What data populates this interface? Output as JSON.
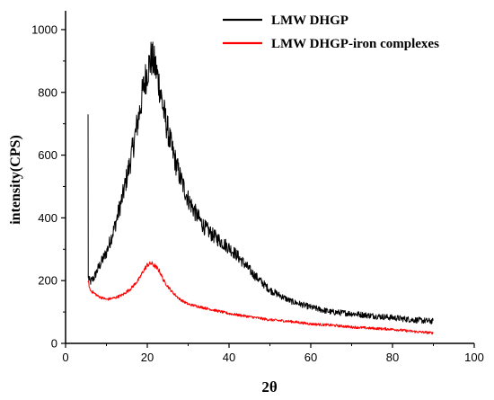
{
  "chart_data": {
    "type": "line",
    "xlabel": "2θ",
    "ylabel": "intensity(CPS)",
    "xlim": [
      0,
      100
    ],
    "ylim": [
      0,
      1060
    ],
    "x_ticks": [
      0,
      20,
      40,
      60,
      80,
      100
    ],
    "y_ticks": [
      0,
      200,
      400,
      600,
      800,
      1000
    ],
    "grid": false,
    "legend_position": "top-right",
    "series": [
      {
        "name": "LMW DHGP",
        "color": "#000000",
        "x": [
          5.5,
          5.6,
          6,
          7,
          8,
          10,
          12,
          14,
          16,
          18,
          19,
          20,
          21,
          22,
          23,
          24,
          26,
          28,
          30,
          32,
          34,
          36,
          38,
          40,
          42,
          44,
          46,
          48,
          50,
          55,
          60,
          65,
          70,
          75,
          80,
          85,
          90
        ],
        "y": [
          730,
          210,
          195,
          210,
          240,
          290,
          370,
          470,
          590,
          730,
          810,
          870,
          910,
          880,
          820,
          740,
          620,
          530,
          460,
          410,
          370,
          345,
          325,
          305,
          280,
          250,
          220,
          195,
          170,
          135,
          115,
          100,
          95,
          88,
          82,
          75,
          70
        ],
        "noise": 28
      },
      {
        "name": "LMW DHGP-iron complexes",
        "color": "#ff0000",
        "x": [
          5.5,
          6,
          8,
          10,
          12,
          14,
          16,
          18,
          19,
          20,
          21,
          22,
          23,
          24,
          26,
          28,
          30,
          35,
          40,
          45,
          50,
          55,
          60,
          65,
          70,
          75,
          80,
          85,
          90
        ],
        "y": [
          200,
          170,
          150,
          140,
          145,
          155,
          175,
          205,
          230,
          250,
          255,
          245,
          230,
          200,
          165,
          140,
          125,
          110,
          95,
          85,
          75,
          70,
          62,
          58,
          52,
          48,
          45,
          38,
          33
        ],
        "noise": 12
      }
    ]
  }
}
